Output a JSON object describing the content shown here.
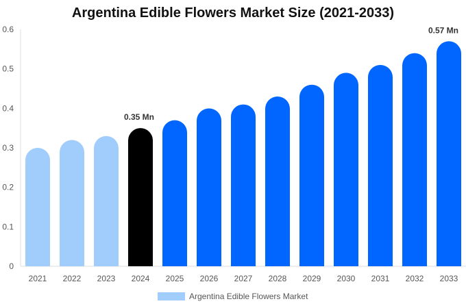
{
  "chart_data": {
    "type": "bar",
    "title": "Argentina Edible Flowers Market Size (2021-2033)",
    "categories": [
      "2021",
      "2022",
      "2023",
      "2024",
      "2025",
      "2026",
      "2027",
      "2028",
      "2029",
      "2030",
      "2031",
      "2032",
      "2033"
    ],
    "series": [
      {
        "name": "Argentina Edible Flowers Market",
        "values": [
          0.3,
          0.32,
          0.33,
          0.35,
          0.37,
          0.4,
          0.41,
          0.43,
          0.46,
          0.49,
          0.51,
          0.54,
          0.57
        ]
      }
    ],
    "ylim": [
      0,
      0.6
    ],
    "yticks": [
      "0",
      "0.1",
      "0.2",
      "0.3",
      "0.4",
      "0.5",
      "0.6"
    ],
    "data_labels": {
      "3": "0.35 Mn",
      "12": "0.57 Mn"
    },
    "bar_colors": {
      "historical": "#a0cdfc",
      "base_year": "#000000",
      "forecast": "#0066ff"
    },
    "legend": "bottom",
    "grid": false
  }
}
